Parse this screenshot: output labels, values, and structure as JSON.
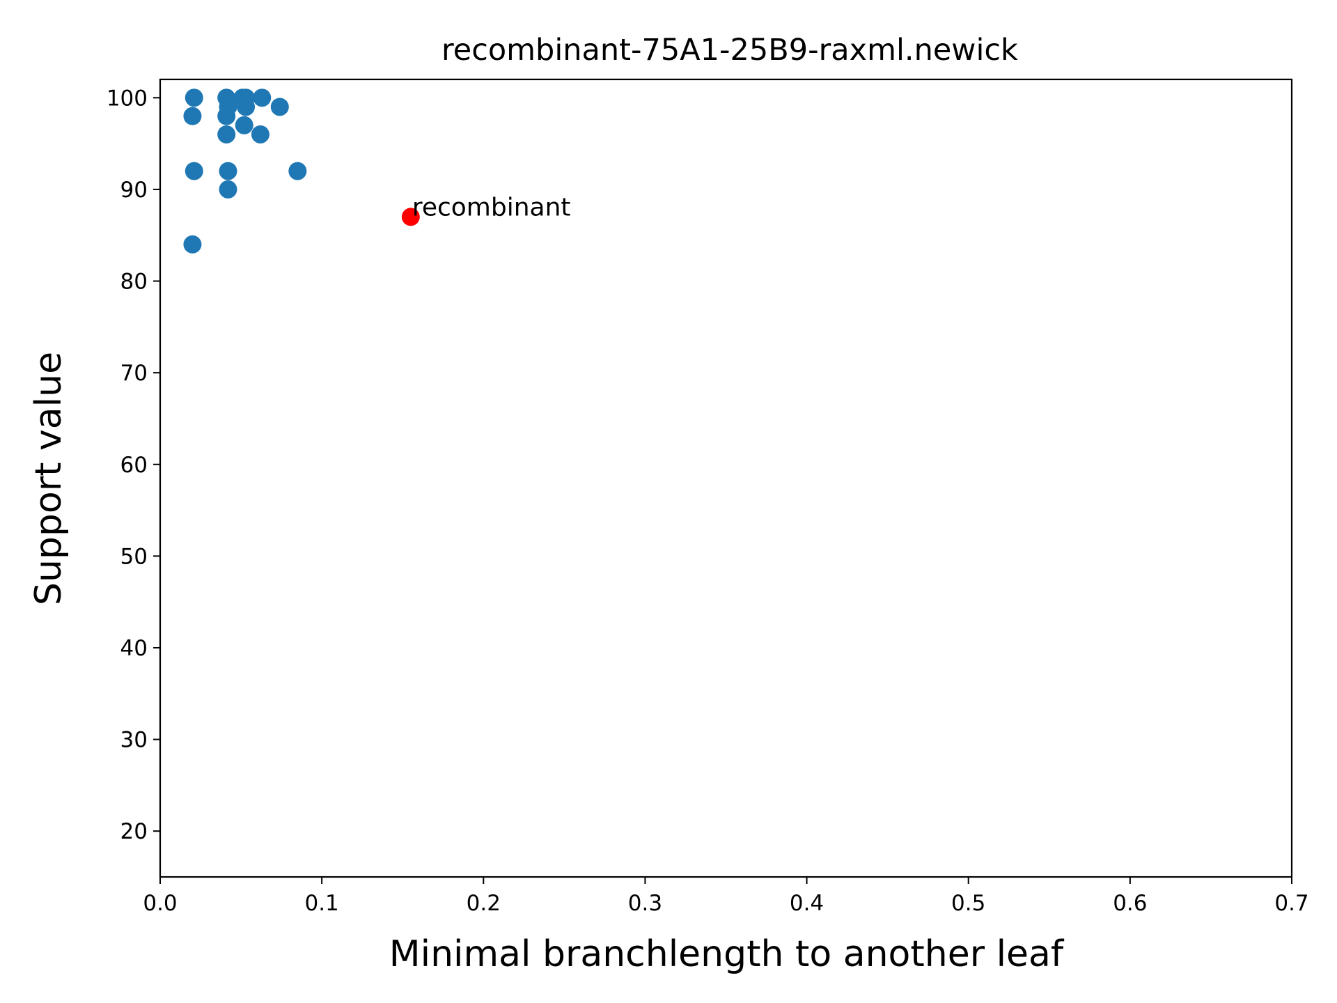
{
  "chart_data": {
    "type": "scatter",
    "title": "recombinant-75A1-25B9-raxml.newick",
    "xlabel": "Minimal branchlength to another leaf",
    "ylabel": "Support value",
    "xlim": [
      0.0,
      0.7
    ],
    "ylim": [
      15,
      102
    ],
    "xticks": [
      "0.0",
      "0.1",
      "0.2",
      "0.3",
      "0.4",
      "0.5",
      "0.6",
      "0.7"
    ],
    "yticks": [
      "20",
      "30",
      "40",
      "50",
      "60",
      "70",
      "80",
      "90",
      "100"
    ],
    "grid": false,
    "series": [
      {
        "color": "#1f77b4",
        "points": [
          {
            "x": 0.021,
            "y": 100
          },
          {
            "x": 0.041,
            "y": 100
          },
          {
            "x": 0.051,
            "y": 100
          },
          {
            "x": 0.053,
            "y": 100
          },
          {
            "x": 0.063,
            "y": 100
          },
          {
            "x": 0.042,
            "y": 99
          },
          {
            "x": 0.053,
            "y": 99
          },
          {
            "x": 0.074,
            "y": 99
          },
          {
            "x": 0.02,
            "y": 98
          },
          {
            "x": 0.041,
            "y": 98
          },
          {
            "x": 0.052,
            "y": 97
          },
          {
            "x": 0.041,
            "y": 96
          },
          {
            "x": 0.062,
            "y": 96
          },
          {
            "x": 0.021,
            "y": 92
          },
          {
            "x": 0.042,
            "y": 92
          },
          {
            "x": 0.085,
            "y": 92
          },
          {
            "x": 0.042,
            "y": 90
          },
          {
            "x": 0.02,
            "y": 84
          }
        ]
      },
      {
        "color": "#ff0000",
        "points": [
          {
            "x": 0.155,
            "y": 87,
            "label": "recombinant"
          }
        ]
      }
    ]
  }
}
